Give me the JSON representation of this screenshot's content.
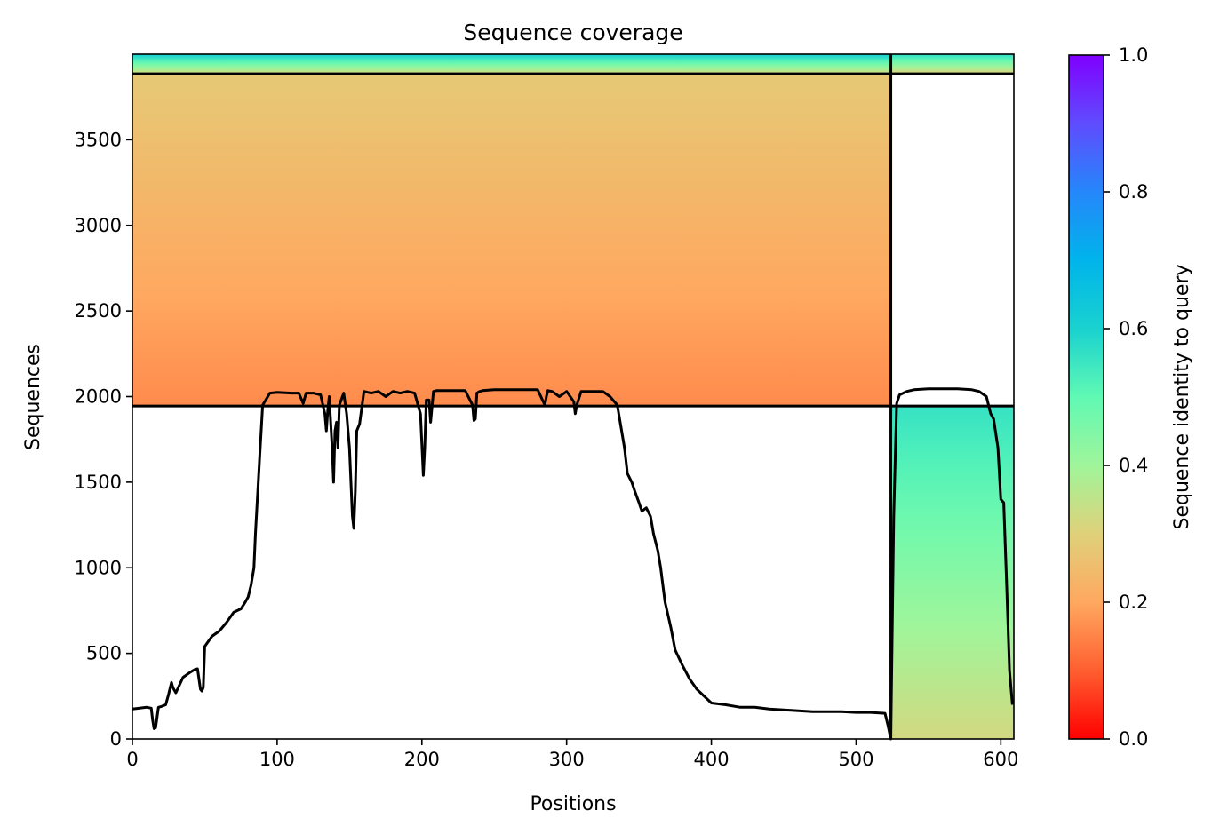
{
  "chart_data": {
    "type": "heatmap",
    "title": "Sequence coverage",
    "xlabel": "Positions",
    "ylabel": "Sequences",
    "colorbar_label": "Sequence identity to query",
    "xlim": [
      0,
      609
    ],
    "ylim": [
      0,
      4000
    ],
    "x_ticks": [
      0,
      100,
      200,
      300,
      400,
      500,
      600
    ],
    "y_ticks": [
      0,
      500,
      1000,
      1500,
      2000,
      2500,
      3000,
      3500
    ],
    "colorbar_ticks": [
      0.0,
      0.2,
      0.4,
      0.6,
      0.8,
      1.0
    ],
    "colorbar_tick_labels": [
      "0.0",
      "0.2",
      "0.4",
      "0.6",
      "0.8",
      "1.0"
    ],
    "colormap": "rainbow_r",
    "colormap_stops": [
      "#ff0000",
      "#ff5f30",
      "#ffa860",
      "#dfd17a",
      "#a0f59a",
      "#60f9b4",
      "#19d2cf",
      "#00b4eb",
      "#2587fa",
      "#5f4cfe",
      "#8000ff"
    ],
    "line_color": "#000000",
    "dividers": {
      "horizontal_y": [
        1945,
        3885
      ],
      "vertical_x": [
        524
      ]
    },
    "blocks": [
      {
        "name": "block-1",
        "x_range": [
          0,
          524
        ],
        "y_range": [
          0,
          1945
        ],
        "identity": null
      },
      {
        "name": "block-2",
        "x_range": [
          0,
          524
        ],
        "y_range": [
          1945,
          3885
        ],
        "identity_bottom": 0.16,
        "identity_top": 0.28
      },
      {
        "name": "block-3",
        "x_range": [
          0,
          524
        ],
        "y_range": [
          3885,
          4000
        ],
        "identity_bottom": 0.32,
        "identity_top": 0.62
      },
      {
        "name": "block-4",
        "x_range": [
          524,
          609
        ],
        "y_range": [
          0,
          1945
        ],
        "identity_bottom": 0.32,
        "identity_top": 0.56
      },
      {
        "name": "block-5",
        "x_range": [
          524,
          609
        ],
        "y_range": [
          3885,
          4000
        ],
        "identity_bottom": 0.3,
        "identity_top": 0.58
      }
    ],
    "coverage": {
      "x": [
        0,
        5,
        10,
        13,
        14,
        15,
        16,
        18,
        20,
        23,
        25,
        27,
        28,
        30,
        35,
        40,
        43,
        45,
        47,
        48,
        49,
        50,
        55,
        60,
        65,
        70,
        75,
        78,
        80,
        82,
        84,
        85,
        86,
        88,
        90,
        95,
        100,
        110,
        115,
        118,
        120,
        125,
        130,
        133,
        134,
        135,
        136,
        138,
        139,
        140,
        141,
        142,
        143,
        146,
        148,
        150,
        152,
        153,
        154,
        155,
        157,
        160,
        165,
        170,
        175,
        180,
        185,
        190,
        195,
        199,
        201,
        202,
        203,
        205,
        206,
        208,
        210,
        220,
        230,
        235,
        236,
        237,
        238,
        240,
        242,
        250,
        260,
        270,
        280,
        285,
        286,
        287,
        290,
        295,
        300,
        305,
        306,
        307,
        310,
        315,
        320,
        325,
        330,
        335,
        340,
        342,
        345,
        347,
        350,
        352,
        355,
        358,
        360,
        363,
        365,
        368,
        372,
        375,
        380,
        385,
        390,
        395,
        400,
        410,
        420,
        430,
        440,
        450,
        460,
        470,
        480,
        490,
        500,
        510,
        520,
        522,
        524,
        526,
        528,
        530,
        535,
        540,
        550,
        560,
        570,
        580,
        585,
        590,
        593,
        595,
        598,
        600,
        602,
        604,
        606,
        608
      ],
      "y": [
        175,
        180,
        185,
        180,
        110,
        60,
        65,
        185,
        190,
        200,
        260,
        330,
        300,
        270,
        360,
        390,
        405,
        410,
        290,
        280,
        300,
        540,
        600,
        630,
        680,
        740,
        760,
        800,
        830,
        900,
        1000,
        1200,
        1350,
        1650,
        1950,
        2020,
        2025,
        2020,
        2020,
        1960,
        2020,
        2020,
        2010,
        1900,
        1800,
        1920,
        2000,
        1700,
        1500,
        1800,
        1850,
        1700,
        1950,
        2020,
        1900,
        1700,
        1300,
        1230,
        1450,
        1800,
        1840,
        2030,
        2020,
        2030,
        2000,
        2030,
        2020,
        2030,
        2020,
        1900,
        1540,
        1700,
        1980,
        1980,
        1850,
        2030,
        2035,
        2035,
        2035,
        1950,
        1860,
        1870,
        2020,
        2030,
        2035,
        2040,
        2040,
        2040,
        2040,
        1950,
        2000,
        2035,
        2030,
        2000,
        2030,
        1970,
        1900,
        1950,
        2030,
        2030,
        2030,
        2030,
        2000,
        1950,
        1700,
        1550,
        1500,
        1450,
        1380,
        1330,
        1350,
        1300,
        1200,
        1100,
        1000,
        800,
        650,
        520,
        430,
        350,
        290,
        250,
        210,
        200,
        185,
        185,
        175,
        170,
        165,
        160,
        160,
        160,
        155,
        155,
        150,
        80,
        0,
        1300,
        1960,
        2010,
        2030,
        2040,
        2045,
        2045,
        2045,
        2040,
        2030,
        2000,
        1900,
        1870,
        1700,
        1400,
        1380,
        900,
        400,
        200,
        30
      ]
    },
    "grid": false,
    "legend": "none",
    "colorbar": "right"
  }
}
